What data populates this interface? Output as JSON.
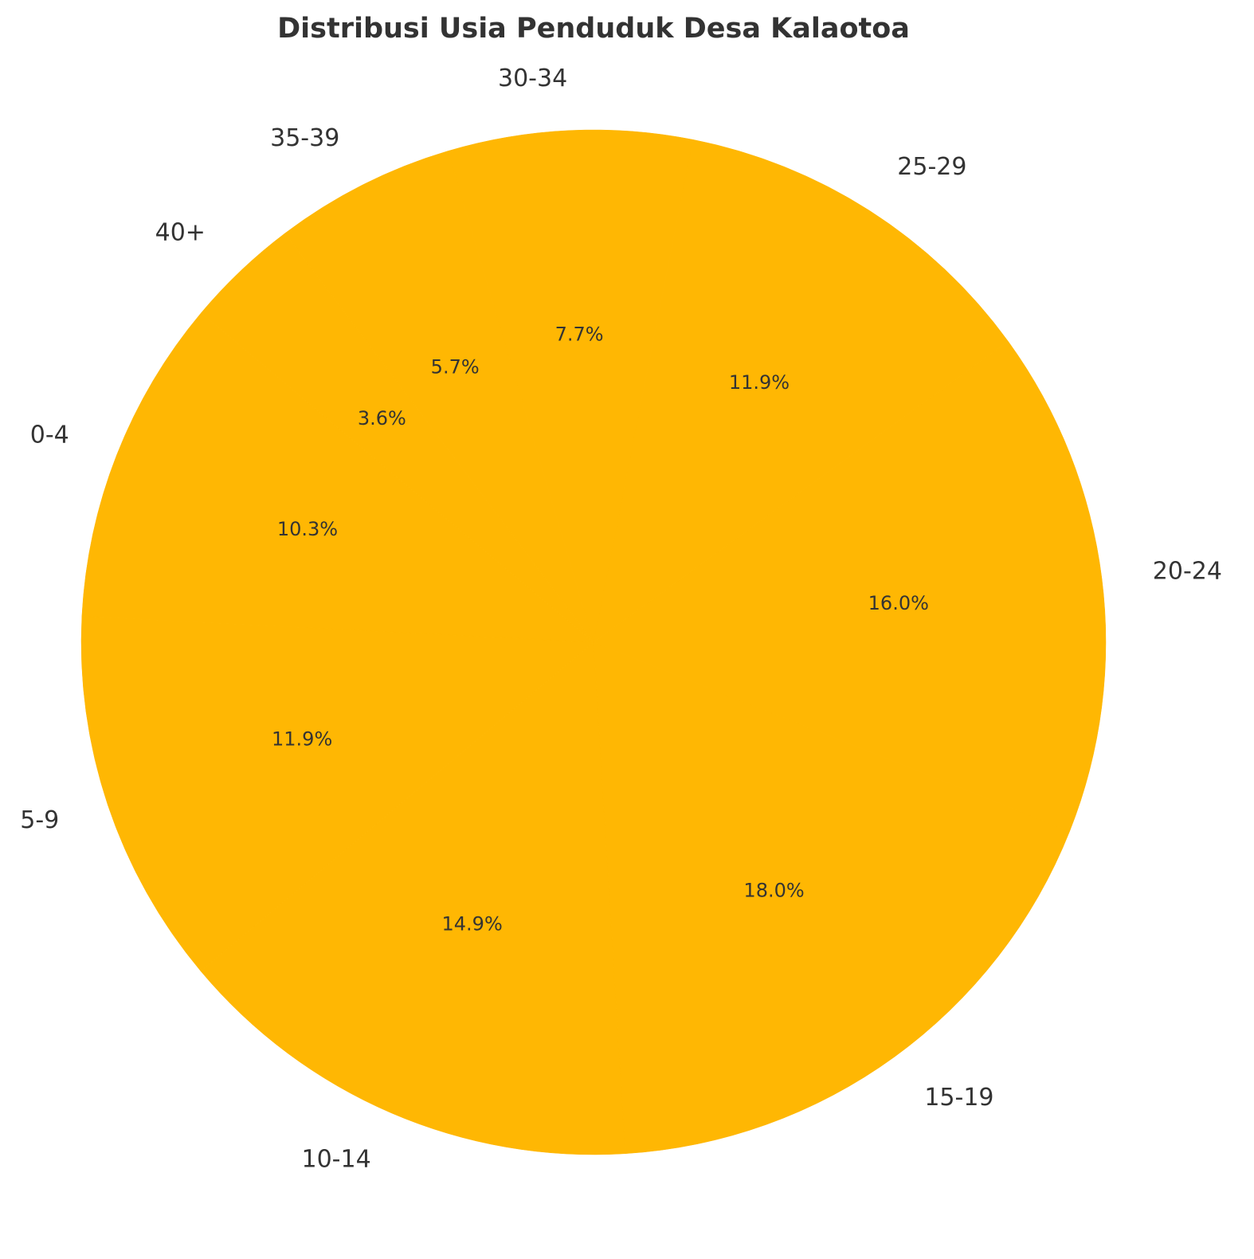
{
  "chart_data": {
    "type": "pie",
    "title": "Distribusi Usia Penduduk Desa Kalaotoa",
    "categories": [
      "0-4",
      "5-9",
      "10-14",
      "15-19",
      "20-24",
      "25-29",
      "30-34",
      "35-39",
      "40+"
    ],
    "values": [
      10.3,
      11.9,
      14.9,
      18.0,
      16.0,
      11.9,
      7.7,
      5.7,
      3.6
    ],
    "value_labels": [
      "10.3%",
      "11.9%",
      "14.9%",
      "18.0%",
      "16.0%",
      "11.9%",
      "7.7%",
      "5.7%",
      "3.6%"
    ],
    "color": "#ffb703"
  }
}
